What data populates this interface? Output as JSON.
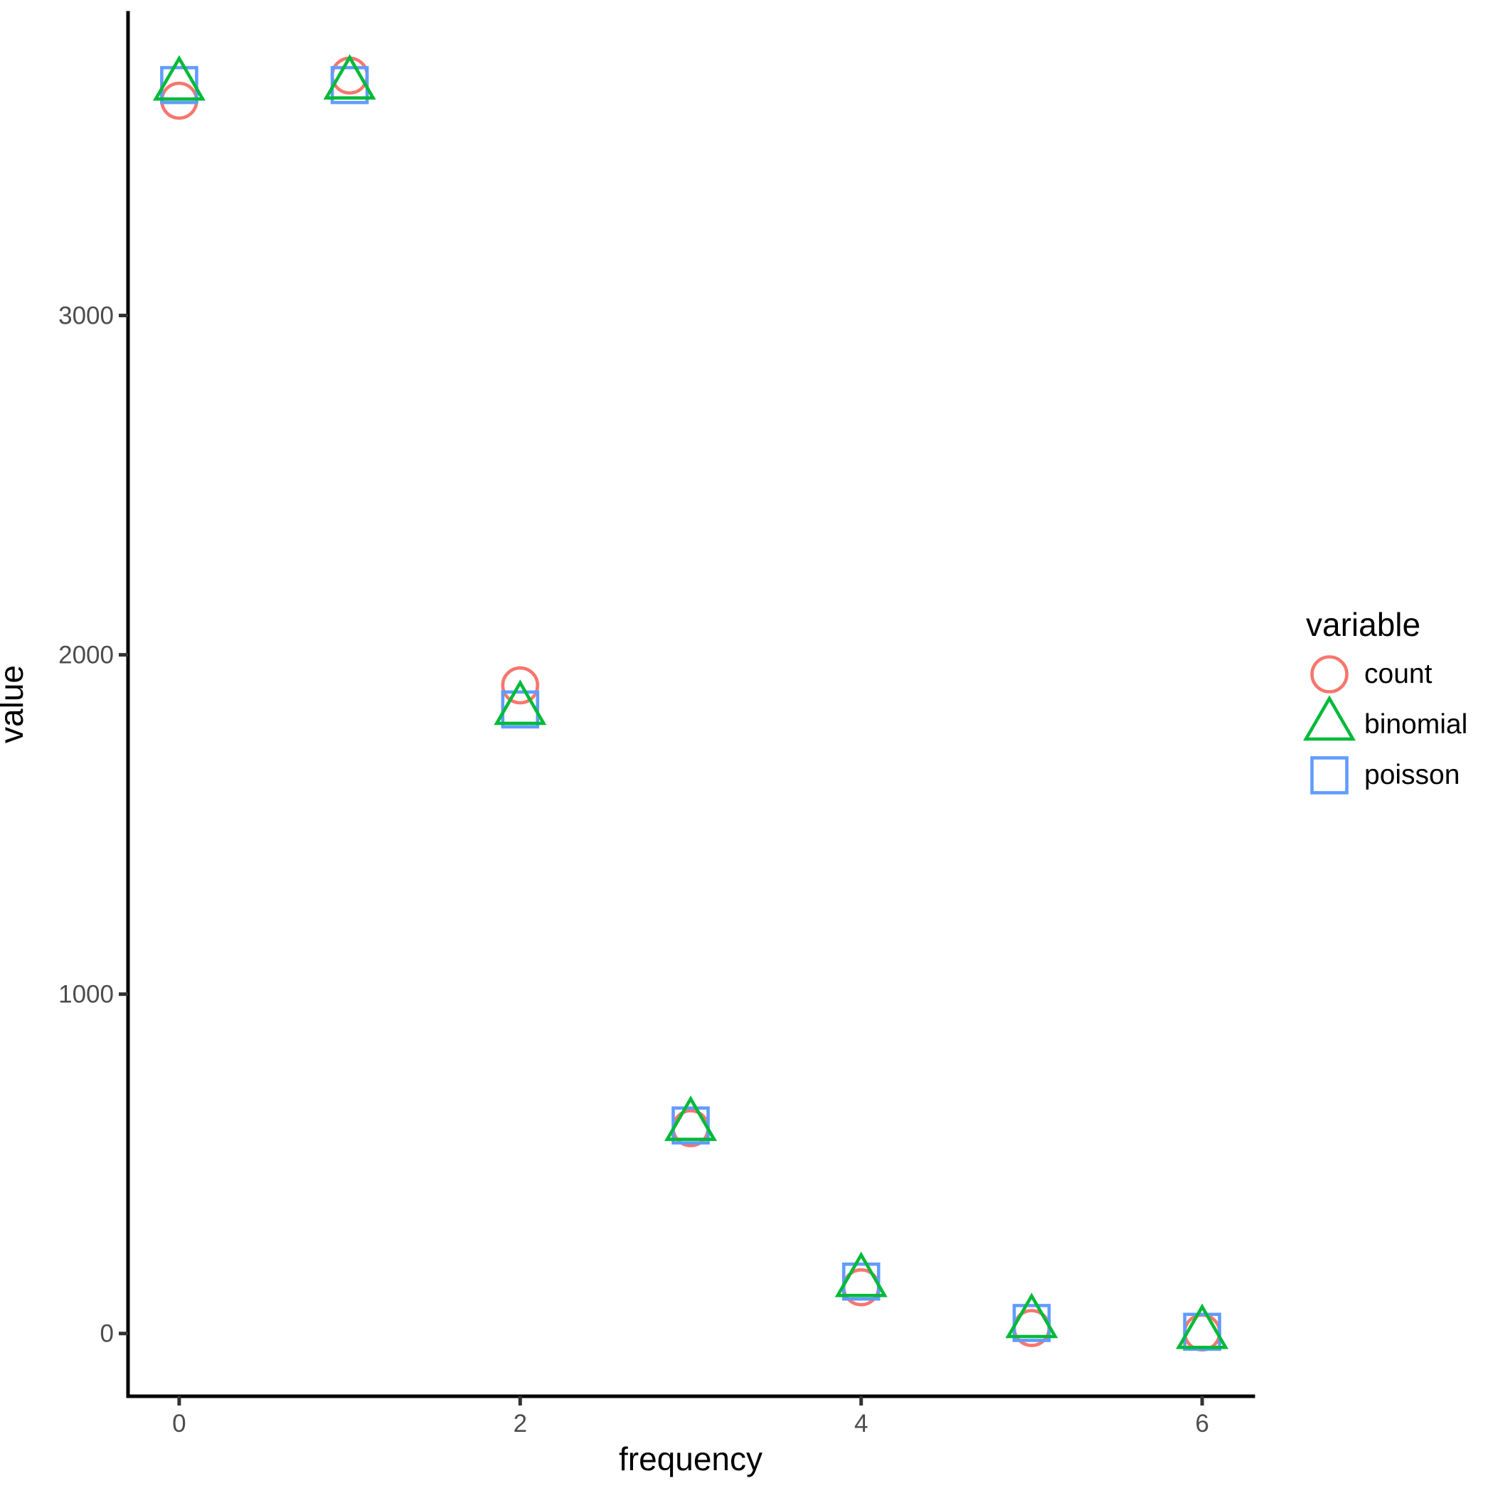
{
  "chart_data": {
    "type": "scatter",
    "title": "",
    "xlabel": "frequency",
    "ylabel": "value",
    "x": [
      0,
      1,
      2,
      3,
      4,
      5,
      6
    ],
    "series": [
      {
        "name": "count",
        "shape": "circle",
        "color": "#F8766D",
        "values": [
          3633,
          3707,
          1910,
          605,
          136,
          16,
          3
        ]
      },
      {
        "name": "binomial",
        "shape": "triangle",
        "color": "#00BA38",
        "values": [
          3680,
          3683,
          1840,
          614,
          154,
          33,
          1
        ]
      },
      {
        "name": "poisson",
        "shape": "square",
        "color": "#619CFF",
        "values": [
          3679,
          3679,
          1839,
          613,
          153,
          31,
          5
        ]
      }
    ],
    "xticks": [
      0,
      2,
      4,
      6
    ],
    "yticks": [
      0,
      1000,
      2000,
      3000
    ],
    "xlim": [
      -0.3,
      6.3
    ],
    "ylim": [
      -185,
      3892
    ],
    "grid": false,
    "legend": {
      "title": "variable",
      "position": "right"
    },
    "axis_text_color": "#4D4D4D",
    "axis_line_color": "#000000",
    "tick_color": "#333333"
  }
}
